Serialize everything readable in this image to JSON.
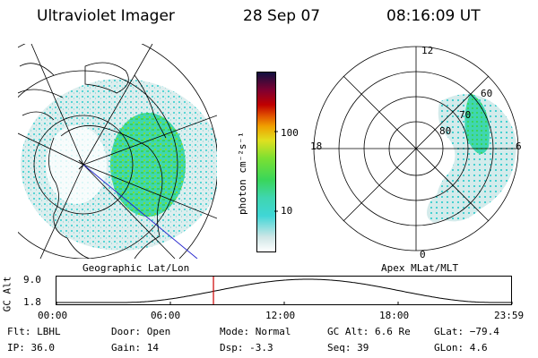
{
  "header": {
    "title": "Ultraviolet Imager",
    "date": "28 Sep 07",
    "time": "08:16:09 UT"
  },
  "colorbar": {
    "unit_label": "photon cm⁻²s⁻¹",
    "ticks": [
      "100",
      "10"
    ],
    "scale": "log"
  },
  "left_panel": {
    "caption": "Geographic Lat/Lon"
  },
  "right_panel": {
    "caption": "Apex MLat/MLT",
    "mlt_labels": {
      "top": "12",
      "left": "18",
      "right": "6",
      "bottom": "0"
    },
    "lat_labels": [
      "60",
      "70",
      "80"
    ]
  },
  "altitude_plot": {
    "ylabel": "GC Alt",
    "ymax_label": "9.0",
    "ymin_label": "1.8",
    "x_ticks": [
      "00:00",
      "06:00",
      "12:00",
      "18:00",
      "23:59"
    ],
    "current_time_hours": 8.27
  },
  "info": {
    "flt": "Flt: LBHL",
    "ip": "IP: 36.0",
    "door": "Door: Open",
    "gain": "Gain: 14",
    "mode": "Mode: Normal",
    "dsp": "Dsp:   -3.3",
    "gc_alt": "GC Alt: 6.6 Re",
    "seq": "Seq: 39",
    "glat": "GLat: −79.4",
    "glon": "GLon:   4.6"
  },
  "colors": {
    "aurora_light": "#cfe6e6",
    "aurora_cyan": "#3fd6d6",
    "aurora_green": "#39d65a",
    "aurora_yellowgreen": "#7be032",
    "time_marker": "#cc0000",
    "track_line": "#2222cc"
  }
}
